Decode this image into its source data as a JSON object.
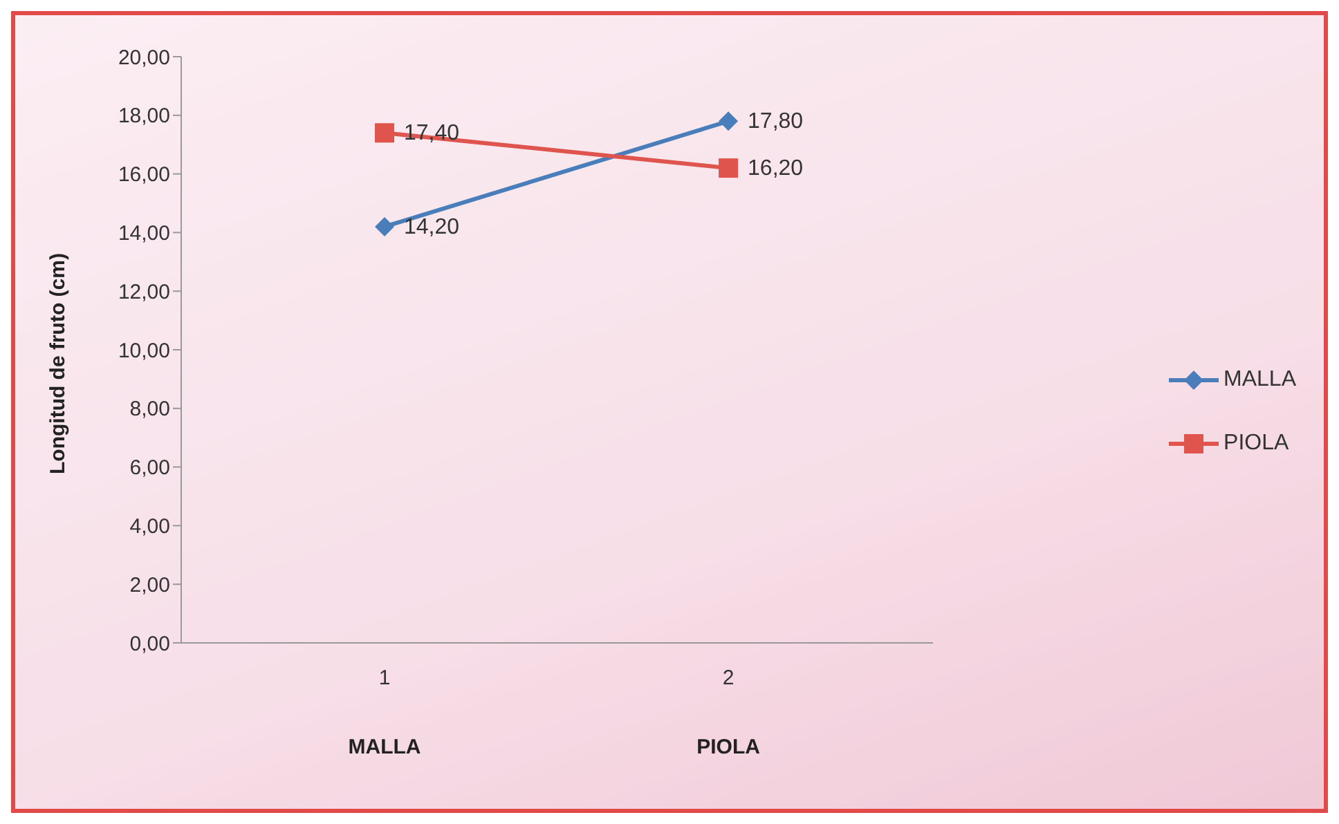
{
  "chart_data": {
    "type": "line",
    "ylabel": "Longitud de fruto (cm)",
    "categories": [
      "1",
      "2"
    ],
    "series": [
      {
        "name": "MALLA",
        "color": "#4a7ebb",
        "marker": "diamond",
        "values": [
          14.2,
          17.8
        ],
        "value_labels": [
          "14,20",
          "17,80"
        ]
      },
      {
        "name": "PIOLA",
        "color": "#e0544e",
        "marker": "square",
        "values": [
          17.4,
          16.2
        ],
        "value_labels": [
          "17,40",
          "16,20"
        ]
      }
    ],
    "ylim": [
      0,
      20
    ],
    "yticks": [
      {
        "value": 0,
        "label": "0,00"
      },
      {
        "value": 2,
        "label": "2,00"
      },
      {
        "value": 4,
        "label": "4,00"
      },
      {
        "value": 6,
        "label": "6,00"
      },
      {
        "value": 8,
        "label": "8,00"
      },
      {
        "value": 10,
        "label": "10,00"
      },
      {
        "value": 12,
        "label": "12,00"
      },
      {
        "value": 14,
        "label": "14,00"
      },
      {
        "value": 16,
        "label": "16,00"
      },
      {
        "value": 18,
        "label": "18,00"
      },
      {
        "value": 20,
        "label": "20,00"
      }
    ],
    "annotations": [
      "MALLA",
      "PIOLA"
    ],
    "grid": false,
    "legend": "right",
    "line_style": "solid"
  }
}
